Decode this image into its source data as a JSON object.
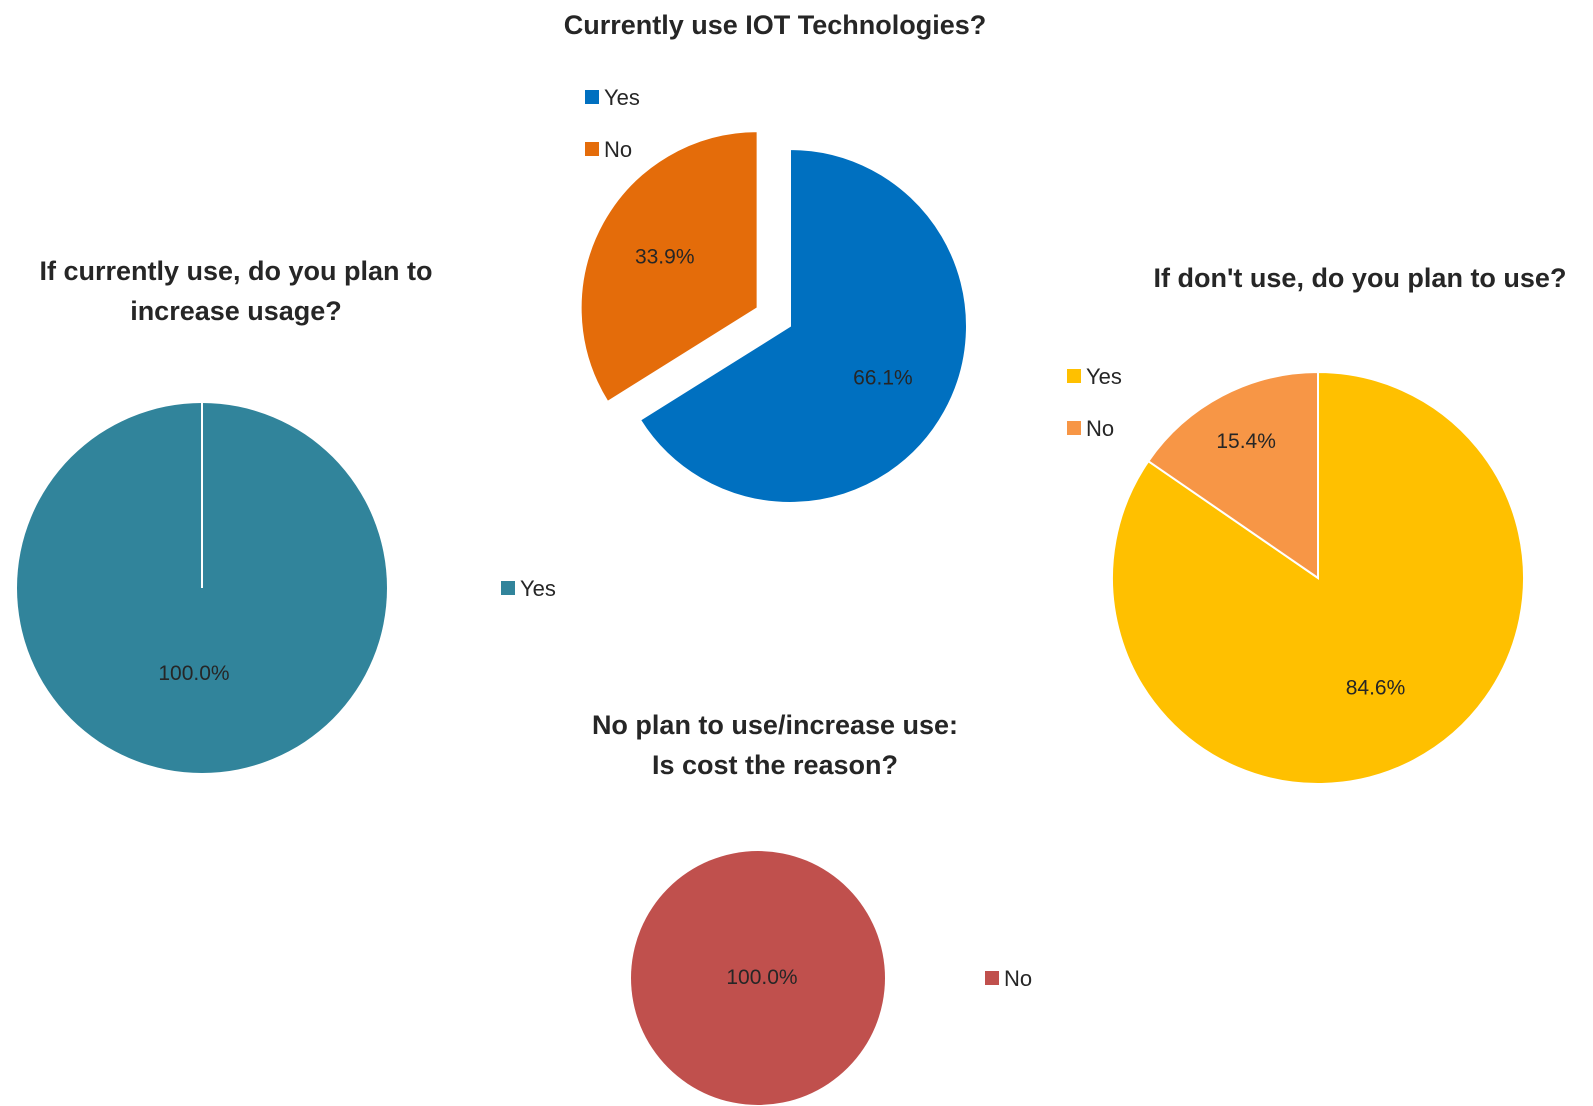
{
  "chart_data": [
    {
      "type": "pie",
      "title": "Currently use IOT Technologies?",
      "title_lines": [
        "Currently use IOT Technologies?"
      ],
      "categories": [
        "Yes",
        "No"
      ],
      "values": [
        66.1,
        33.9
      ],
      "labels": [
        "66.1%",
        "33.9%"
      ],
      "colors": [
        "#0070C0",
        "#E46C0A"
      ],
      "exploded": true,
      "legend": "top-left"
    },
    {
      "type": "pie",
      "title": "If currently use, do you plan to increase usage?",
      "title_lines": [
        "If currently use, do you plan to",
        "increase usage?"
      ],
      "categories": [
        "Yes"
      ],
      "values": [
        100.0
      ],
      "labels": [
        "100.0%"
      ],
      "colors": [
        "#31849B"
      ],
      "legend": "right"
    },
    {
      "type": "pie",
      "title": "If don't use, do you plan to use?",
      "title_lines": [
        "If don't use, do you plan to use?"
      ],
      "categories": [
        "Yes",
        "No"
      ],
      "values": [
        84.6,
        15.4
      ],
      "labels": [
        "84.6%",
        "15.4%"
      ],
      "colors": [
        "#FFC000",
        "#F79646"
      ],
      "legend": "left"
    },
    {
      "type": "pie",
      "title": "No plan to use/increase use: Is cost the reason?",
      "title_lines": [
        "No plan to use/increase use:",
        "Is cost the reason?"
      ],
      "categories": [
        "No"
      ],
      "values": [
        100.0
      ],
      "labels": [
        "100.0%"
      ],
      "colors": [
        "#C0504D"
      ],
      "legend": "right"
    }
  ]
}
